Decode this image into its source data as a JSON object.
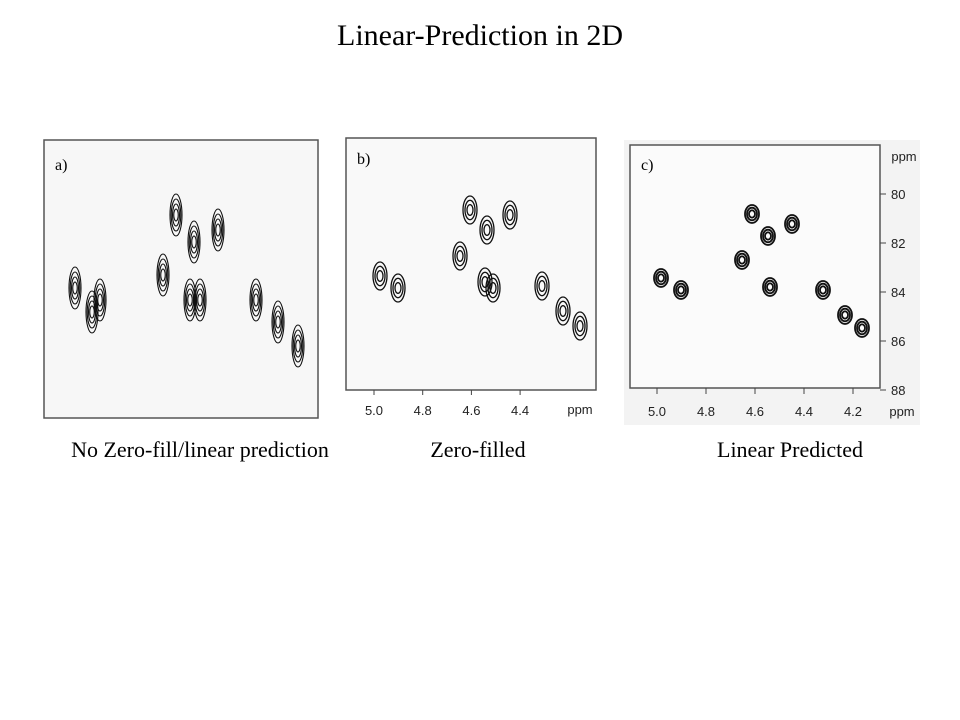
{
  "title": "Linear-Prediction in 2D",
  "panels": [
    {
      "label": "a)",
      "caption": "No Zero-fill/linear prediction"
    },
    {
      "label": "b)",
      "caption": "Zero-filled",
      "x_ticks": [
        "5.0",
        "4.8",
        "4.6",
        "4.4"
      ],
      "x_unit": "ppm"
    },
    {
      "label": "c)",
      "caption": "Linear Predicted",
      "x_ticks": [
        "5.0",
        "4.8",
        "4.6",
        "4.4",
        "4.2"
      ],
      "x_unit": "ppm",
      "y_ticks": [
        "80",
        "82",
        "84",
        "86",
        "88"
      ],
      "y_unit": "ppm"
    }
  ]
}
